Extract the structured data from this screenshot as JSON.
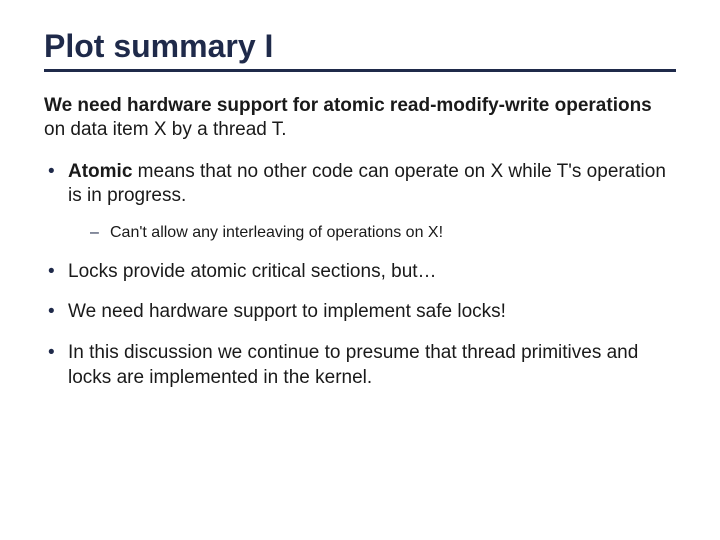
{
  "colors": {
    "title": "#1f2a4a",
    "underline": "#1f2a4a",
    "body_text": "#1a1a1a",
    "bullet": "#1f2a4a",
    "background": "#ffffff"
  },
  "typography": {
    "title_fontsize": 32,
    "body_fontsize": 19,
    "sub_fontsize": 16,
    "title_weight": "bold"
  },
  "title": "Plot summary I",
  "intro": {
    "bold_part": "We need hardware support for atomic read-modify-write operations",
    "rest": " on data item X by a thread T."
  },
  "bullets": [
    {
      "bold_lead": "Atomic",
      "text": " means that no other code can operate on X while T's operation is in progress.",
      "sub": [
        "Can't allow any interleaving of operations on X!"
      ]
    },
    {
      "bold_lead": "",
      "text": "Locks provide atomic critical sections, but…",
      "sub": []
    },
    {
      "bold_lead": "",
      "text": "We need hardware support to implement safe locks!",
      "sub": []
    },
    {
      "bold_lead": "",
      "text": "In this discussion we continue to presume that thread primitives and locks are implemented in the kernel.",
      "sub": []
    }
  ]
}
